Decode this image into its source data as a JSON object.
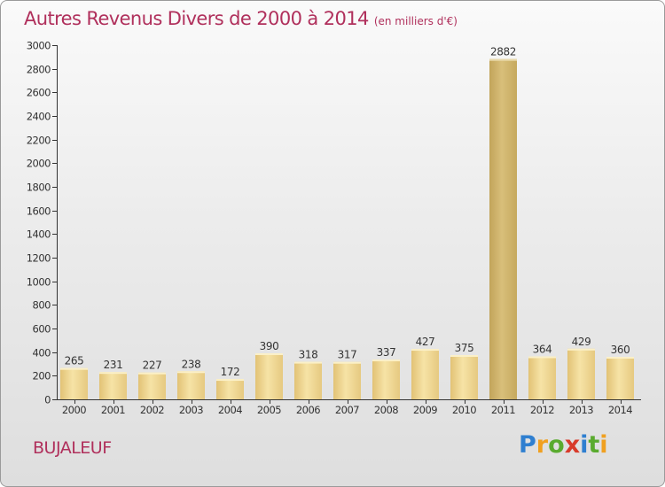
{
  "title": "Autres Revenus Divers de 2000 à 2014",
  "title_unit": "(en milliers d'€)",
  "place": "BUJALEUF",
  "logo": {
    "letters": [
      {
        "ch": "P",
        "color": "#2f7fd0"
      },
      {
        "ch": "r",
        "color": "#f0a020"
      },
      {
        "ch": "o",
        "color": "#5aab2f"
      },
      {
        "ch": "x",
        "color": "#d83a2a"
      },
      {
        "ch": "i",
        "color": "#2f7fd0"
      },
      {
        "ch": "t",
        "color": "#5aab2f"
      },
      {
        "ch": "i",
        "color": "#f0a020"
      }
    ]
  },
  "colors": {
    "title": "#b0305c",
    "bar": "#ebd38c",
    "bar_highlight": "#c9ad62",
    "axis": "#333333"
  },
  "chart_data": {
    "type": "bar",
    "categories": [
      "2000",
      "2001",
      "2002",
      "2003",
      "2004",
      "2005",
      "2006",
      "2007",
      "2008",
      "2009",
      "2010",
      "2011",
      "2012",
      "2013",
      "2014"
    ],
    "values": [
      265,
      231,
      227,
      238,
      172,
      390,
      318,
      317,
      337,
      427,
      375,
      2882,
      364,
      429,
      360
    ],
    "ylim": [
      0,
      3000
    ],
    "yticks": [
      0,
      200,
      400,
      600,
      800,
      1000,
      1200,
      1400,
      1600,
      1800,
      2000,
      2200,
      2400,
      2600,
      2800,
      3000
    ],
    "grid": false,
    "highlight_index": 11
  }
}
